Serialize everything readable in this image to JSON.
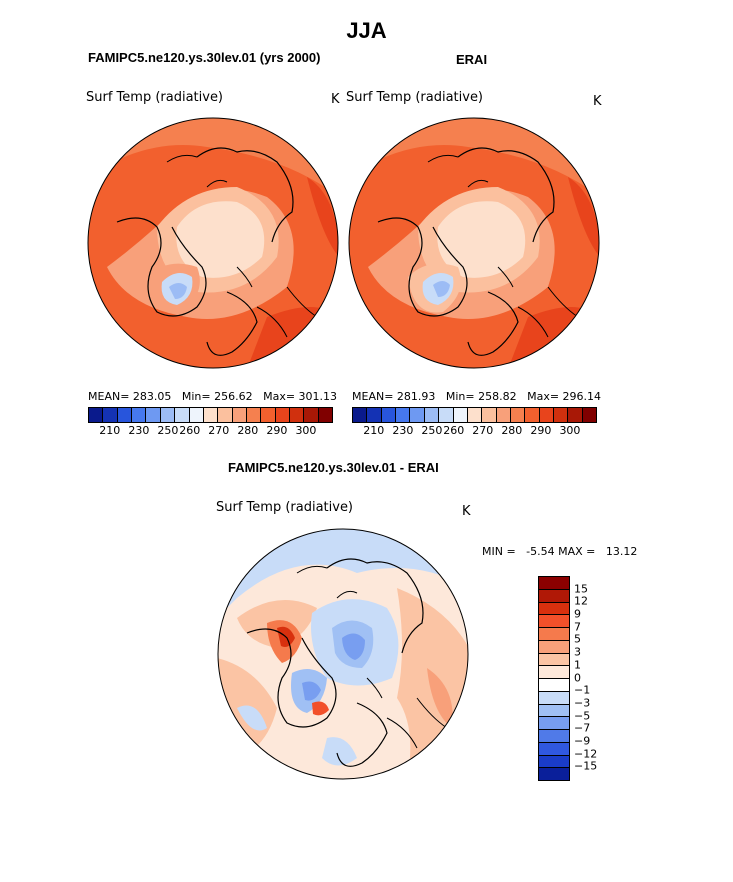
{
  "title": "JJA",
  "panels": {
    "model": {
      "title": "FAMIPC5.ne120.ys.30lev.01 (yrs 2000)",
      "variable": "Surf Temp (radiative)",
      "unit": "K",
      "stats": "MEAN= 283.05   Min= 256.62   Max= 301.13"
    },
    "obs": {
      "title": "ERAI",
      "variable": "Surf Temp (radiative)",
      "unit": "K",
      "stats": "MEAN= 281.93   Min= 258.82   Max= 296.14"
    },
    "diff": {
      "title": "FAMIPC5.ne120.ys.30lev.01 - ERAI",
      "variable": "Surf Temp (radiative)",
      "unit": "K",
      "stats": "MIN =   -5.54 MAX =   13.12"
    }
  },
  "colorbar_abs": {
    "colors": [
      "#0a1a8c",
      "#1432b4",
      "#2855dc",
      "#4678ee",
      "#6e99f2",
      "#9cbcf5",
      "#c8dcf8",
      "#eef4fc",
      "#fde0cc",
      "#fbc09e",
      "#f8a07a",
      "#f5804f",
      "#f2602e",
      "#e8441c",
      "#d0300e",
      "#a81806",
      "#800000"
    ],
    "ticks": [
      "210",
      "230",
      "250",
      "260",
      "270",
      "280",
      "290",
      "300"
    ],
    "tick_positions": [
      1.5,
      3.5,
      5.5,
      7,
      9,
      11,
      13,
      15
    ]
  },
  "colorbar_diff": {
    "colors": [
      "#8b0000",
      "#b01806",
      "#d8300e",
      "#f2502a",
      "#f57a4c",
      "#f8a07a",
      "#fbc4a4",
      "#fde8da",
      "#ffffff",
      "#c8dcf8",
      "#a0c0f4",
      "#789ef0",
      "#507ae8",
      "#3058e0",
      "#1a3cc8",
      "#0a1f9a"
    ],
    "labels": [
      "15",
      "12",
      "9",
      "7",
      "5",
      "3",
      "1",
      "0",
      "−1",
      "−3",
      "−5",
      "−7",
      "−9",
      "−12",
      "−15"
    ]
  }
}
